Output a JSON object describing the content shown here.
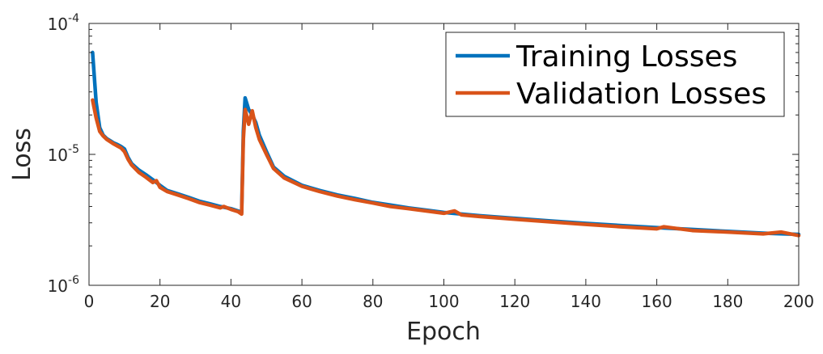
{
  "chart_data": {
    "type": "line",
    "title": "",
    "xlabel": "Epoch",
    "ylabel": "Loss",
    "xlim": [
      0,
      200
    ],
    "ylim": [
      1e-06,
      0.0001
    ],
    "yscale": "log",
    "grid": false,
    "legend_position": "top-right",
    "x_ticks": [
      0,
      20,
      40,
      60,
      80,
      100,
      120,
      140,
      160,
      180,
      200
    ],
    "x_tick_labels": [
      "0",
      "20",
      "40",
      "60",
      "80",
      "100",
      "120",
      "140",
      "160",
      "180",
      "200"
    ],
    "y_ticks": [
      1e-06,
      1e-05,
      0.0001
    ],
    "y_tick_labels": [
      {
        "base": "10",
        "exp": "-6"
      },
      {
        "base": "10",
        "exp": "-5"
      },
      {
        "base": "10",
        "exp": "-4"
      }
    ],
    "series": [
      {
        "name": "Training Losses",
        "color": "#0072BD",
        "points": [
          [
            1,
            6e-05
          ],
          [
            2,
            2.5e-05
          ],
          [
            3,
            1.6e-05
          ],
          [
            4,
            1.4e-05
          ],
          [
            5,
            1.32e-05
          ],
          [
            6,
            1.27e-05
          ],
          [
            7,
            1.22e-05
          ],
          [
            8,
            1.19e-05
          ],
          [
            9,
            1.15e-05
          ],
          [
            10,
            1.1e-05
          ],
          [
            11,
            9.5e-06
          ],
          [
            12,
            8.5e-06
          ],
          [
            14,
            7.6e-06
          ],
          [
            16,
            7e-06
          ],
          [
            18,
            6.4e-06
          ],
          [
            20,
            5.8e-06
          ],
          [
            22,
            5.3e-06
          ],
          [
            25,
            5e-06
          ],
          [
            28,
            4.7e-06
          ],
          [
            31,
            4.4e-06
          ],
          [
            34,
            4.2e-06
          ],
          [
            37,
            4e-06
          ],
          [
            40,
            3.85e-06
          ],
          [
            42,
            3.7e-06
          ],
          [
            43,
            3.6e-06
          ],
          [
            43.5,
            1.5e-05
          ],
          [
            44,
            2.7e-05
          ],
          [
            45,
            2.2e-05
          ],
          [
            46,
            2e-05
          ],
          [
            47,
            1.75e-05
          ],
          [
            48,
            1.4e-05
          ],
          [
            50,
            1.05e-05
          ],
          [
            52,
            8e-06
          ],
          [
            55,
            6.8e-06
          ],
          [
            60,
            5.8e-06
          ],
          [
            65,
            5.3e-06
          ],
          [
            70,
            4.9e-06
          ],
          [
            75,
            4.6e-06
          ],
          [
            80,
            4.3e-06
          ],
          [
            85,
            4.1e-06
          ],
          [
            90,
            3.9e-06
          ],
          [
            95,
            3.75e-06
          ],
          [
            100,
            3.6e-06
          ],
          [
            110,
            3.4e-06
          ],
          [
            120,
            3.25e-06
          ],
          [
            130,
            3.1e-06
          ],
          [
            140,
            2.97e-06
          ],
          [
            150,
            2.86e-06
          ],
          [
            160,
            2.76e-06
          ],
          [
            170,
            2.67e-06
          ],
          [
            180,
            2.58e-06
          ],
          [
            190,
            2.5e-06
          ],
          [
            200,
            2.45e-06
          ]
        ]
      },
      {
        "name": "Validation Losses",
        "color": "#D95319",
        "points": [
          [
            1,
            2.6e-05
          ],
          [
            2,
            1.9e-05
          ],
          [
            3,
            1.5e-05
          ],
          [
            4,
            1.38e-05
          ],
          [
            5,
            1.3e-05
          ],
          [
            6,
            1.25e-05
          ],
          [
            7,
            1.2e-05
          ],
          [
            8,
            1.16e-05
          ],
          [
            9,
            1.12e-05
          ],
          [
            10,
            1.05e-05
          ],
          [
            11,
            9.2e-06
          ],
          [
            12,
            8.3e-06
          ],
          [
            14,
            7.3e-06
          ],
          [
            16,
            6.7e-06
          ],
          [
            18,
            6.1e-06
          ],
          [
            19,
            6.3e-06
          ],
          [
            20,
            5.6e-06
          ],
          [
            22,
            5.2e-06
          ],
          [
            25,
            4.9e-06
          ],
          [
            28,
            4.6e-06
          ],
          [
            31,
            4.3e-06
          ],
          [
            34,
            4.1e-06
          ],
          [
            37,
            3.9e-06
          ],
          [
            38,
            4e-06
          ],
          [
            40,
            3.8e-06
          ],
          [
            42,
            3.65e-06
          ],
          [
            43,
            3.5e-06
          ],
          [
            43.5,
            1.3e-05
          ],
          [
            44,
            2.2e-05
          ],
          [
            45,
            1.7e-05
          ],
          [
            46,
            2.15e-05
          ],
          [
            47,
            1.6e-05
          ],
          [
            48,
            1.3e-05
          ],
          [
            50,
            1e-05
          ],
          [
            52,
            7.8e-06
          ],
          [
            55,
            6.6e-06
          ],
          [
            60,
            5.7e-06
          ],
          [
            65,
            5.2e-06
          ],
          [
            70,
            4.8e-06
          ],
          [
            75,
            4.5e-06
          ],
          [
            80,
            4.25e-06
          ],
          [
            85,
            4e-06
          ],
          [
            90,
            3.85e-06
          ],
          [
            95,
            3.7e-06
          ],
          [
            100,
            3.55e-06
          ],
          [
            103,
            3.7e-06
          ],
          [
            105,
            3.45e-06
          ],
          [
            110,
            3.35e-06
          ],
          [
            120,
            3.2e-06
          ],
          [
            130,
            3.05e-06
          ],
          [
            140,
            2.92e-06
          ],
          [
            150,
            2.8e-06
          ],
          [
            160,
            2.7e-06
          ],
          [
            162,
            2.8e-06
          ],
          [
            170,
            2.62e-06
          ],
          [
            180,
            2.55e-06
          ],
          [
            190,
            2.47e-06
          ],
          [
            195,
            2.55e-06
          ],
          [
            200,
            2.4e-06
          ]
        ]
      }
    ]
  }
}
